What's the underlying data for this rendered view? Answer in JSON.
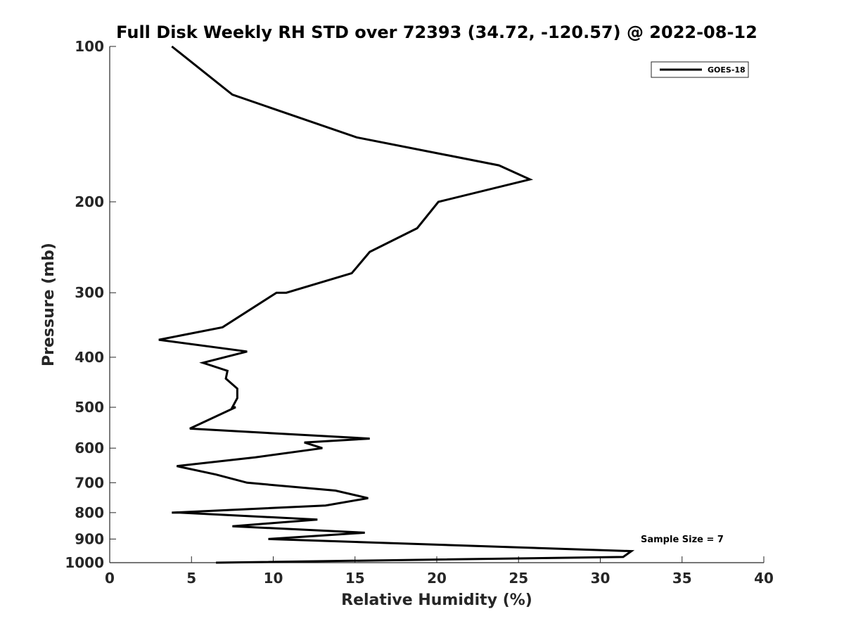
{
  "chart_data": {
    "type": "line",
    "title": "Full Disk Weekly RH STD over 72393 (34.72, -120.57) @ 2022-08-12",
    "xlabel": "Relative Humidity (%)",
    "ylabel": "Pressure (mb)",
    "xlim": [
      0,
      40
    ],
    "ylim": [
      100,
      1000
    ],
    "y_scale": "log",
    "y_reversed": true,
    "x_ticks": [
      "0",
      "5",
      "10",
      "15",
      "20",
      "25",
      "30",
      "35",
      "40"
    ],
    "y_ticks": [
      "100",
      "200",
      "300",
      "400",
      "500",
      "600",
      "700",
      "800",
      "900",
      "1000"
    ],
    "grid": false,
    "legend_position": "top-right",
    "annotation": "Sample Size = 7",
    "series": [
      {
        "name": "GOES-18",
        "color": "#000000",
        "points": [
          [
            3.8,
            100
          ],
          [
            7.5,
            124
          ],
          [
            15.1,
            150
          ],
          [
            23.8,
            170
          ],
          [
            25.7,
            181
          ],
          [
            20.1,
            200
          ],
          [
            18.8,
            225
          ],
          [
            15.9,
            250
          ],
          [
            14.8,
            275
          ],
          [
            10.8,
            300
          ],
          [
            10.2,
            300
          ],
          [
            6.9,
            350
          ],
          [
            3.0,
            370
          ],
          [
            8.4,
            390
          ],
          [
            5.7,
            410
          ],
          [
            7.2,
            425
          ],
          [
            7.1,
            440
          ],
          [
            7.8,
            460
          ],
          [
            7.8,
            480
          ],
          [
            7.5,
            500
          ],
          [
            7.7,
            500
          ],
          [
            4.9,
            550
          ],
          [
            15.9,
            575
          ],
          [
            11.9,
            585
          ],
          [
            13.0,
            600
          ],
          [
            8.9,
            625
          ],
          [
            4.1,
            650
          ],
          [
            6.5,
            675
          ],
          [
            8.4,
            700
          ],
          [
            13.8,
            725
          ],
          [
            15.8,
            750
          ],
          [
            13.2,
            775
          ],
          [
            3.8,
            800
          ],
          [
            4.3,
            800
          ],
          [
            12.7,
            825
          ],
          [
            7.5,
            850
          ],
          [
            15.6,
            875
          ],
          [
            9.7,
            900
          ],
          [
            31.9,
            950
          ],
          [
            31.4,
            975
          ],
          [
            6.5,
            1000
          ]
        ]
      }
    ]
  }
}
